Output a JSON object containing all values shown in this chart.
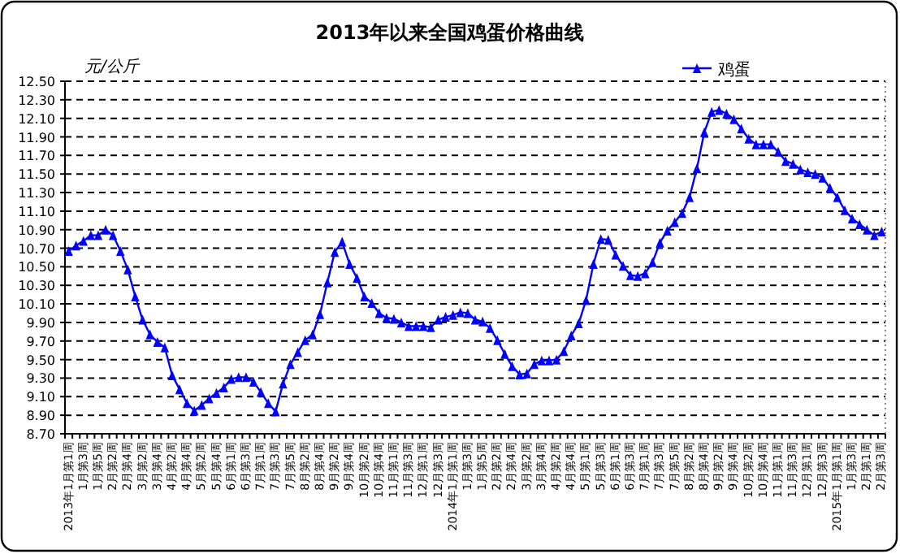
{
  "chart_data": {
    "type": "line",
    "title": "2013年以来全国鸡蛋价格曲线",
    "ylabel": "元/公斤",
    "categories": [
      "2013年1月第1周",
      null,
      "1月第3周",
      null,
      "1月第5周",
      null,
      "2月第2周",
      null,
      "2月第4周",
      null,
      "3月第2周",
      null,
      "3月第4周",
      null,
      "4月第2周",
      null,
      "4月第4周",
      null,
      "5月第2周",
      null,
      "5月第4周",
      null,
      "6月第1周",
      null,
      "6月第3周",
      null,
      "7月第1周",
      null,
      "7月第3周",
      null,
      "7月第5周",
      null,
      "8月第2周",
      null,
      "8月第4周",
      null,
      "9月第2周",
      null,
      "9月第4周",
      null,
      "10月第2周",
      null,
      "10月第4周",
      null,
      "11月第1周",
      null,
      "11月第3周",
      null,
      "12月第1周",
      null,
      "12月第3周",
      null,
      "2014年1月第1周",
      null,
      "1月第3周",
      null,
      "1月第5周",
      null,
      "2月第2周",
      null,
      "2月第4周",
      null,
      "3月第2周",
      null,
      "3月第4周",
      null,
      "4月第2周",
      null,
      "4月第4周",
      null,
      "5月第1周",
      null,
      "5月第3周",
      null,
      "6月第1周",
      null,
      "6月第3周",
      null,
      "7月第1周",
      null,
      "7月第3周",
      null,
      "7月第5周",
      null,
      "8月第2周",
      null,
      "8月第4周",
      null,
      "9月第2周",
      null,
      "9月第4周",
      null,
      "10月第2周",
      null,
      "10月第4周",
      null,
      "11月第1周",
      null,
      "11月第3周",
      null,
      "12月第1周",
      null,
      "12月第3周",
      null,
      "2015年1月第1周",
      null,
      "1月第3周",
      null,
      "2月第1周",
      null,
      "2月第3周"
    ],
    "series": [
      {
        "name": "鸡蛋",
        "color": "#0000ff",
        "values": [
          10.67,
          10.73,
          10.78,
          10.84,
          10.84,
          10.9,
          10.84,
          10.67,
          10.47,
          10.18,
          9.93,
          9.77,
          9.69,
          9.63,
          9.33,
          9.18,
          9.03,
          8.95,
          9.01,
          9.08,
          9.14,
          9.2,
          9.29,
          9.31,
          9.31,
          9.26,
          9.15,
          9.03,
          8.94,
          9.24,
          9.45,
          9.58,
          9.71,
          9.77,
          9.99,
          10.33,
          10.66,
          10.77,
          10.53,
          10.38,
          10.18,
          10.11,
          10.0,
          9.95,
          9.94,
          9.9,
          9.86,
          9.86,
          9.86,
          9.85,
          9.93,
          9.96,
          9.98,
          10.01,
          10.0,
          9.93,
          9.91,
          9.84,
          9.71,
          9.56,
          9.43,
          9.34,
          9.35,
          9.45,
          9.49,
          9.49,
          9.5,
          9.59,
          9.76,
          9.89,
          10.14,
          10.53,
          10.8,
          10.79,
          10.63,
          10.51,
          10.41,
          10.4,
          10.43,
          10.55,
          10.76,
          10.89,
          10.98,
          11.08,
          11.25,
          11.56,
          11.95,
          12.17,
          12.19,
          12.15,
          12.09,
          11.99,
          11.88,
          11.82,
          11.82,
          11.82,
          11.74,
          11.64,
          11.61,
          11.55,
          11.52,
          11.5,
          11.46,
          11.35,
          11.25,
          11.11,
          11.02,
          10.96,
          10.9,
          10.84,
          10.88
        ]
      }
    ],
    "ylim": [
      8.7,
      12.5
    ],
    "yticks": [
      {
        "value": 8.7,
        "label": "8.70"
      },
      {
        "value": 8.9,
        "label": "8.90"
      },
      {
        "value": 9.1,
        "label": "9.10"
      },
      {
        "value": 9.3,
        "label": "9.30"
      },
      {
        "value": 9.5,
        "label": "9.50"
      },
      {
        "value": 9.7,
        "label": "9.70"
      },
      {
        "value": 9.9,
        "label": "9.90"
      },
      {
        "value": 10.1,
        "label": "10.10"
      },
      {
        "value": 10.3,
        "label": "10.30"
      },
      {
        "value": 10.5,
        "label": "10.50"
      },
      {
        "value": 10.7,
        "label": "10.70"
      },
      {
        "value": 10.9,
        "label": "10.90"
      },
      {
        "value": 11.1,
        "label": "11.10"
      },
      {
        "value": 11.3,
        "label": "11.30"
      },
      {
        "value": 11.5,
        "label": "11.50"
      },
      {
        "value": 11.7,
        "label": "11.70"
      },
      {
        "value": 11.9,
        "label": "11.90"
      },
      {
        "value": 12.1,
        "label": "12.10"
      },
      {
        "value": 12.3,
        "label": "12.30"
      },
      {
        "value": 12.5,
        "label": "12.50"
      }
    ],
    "grid": "y",
    "legend": "top right",
    "marker": "triangle",
    "line_style": "solid"
  }
}
